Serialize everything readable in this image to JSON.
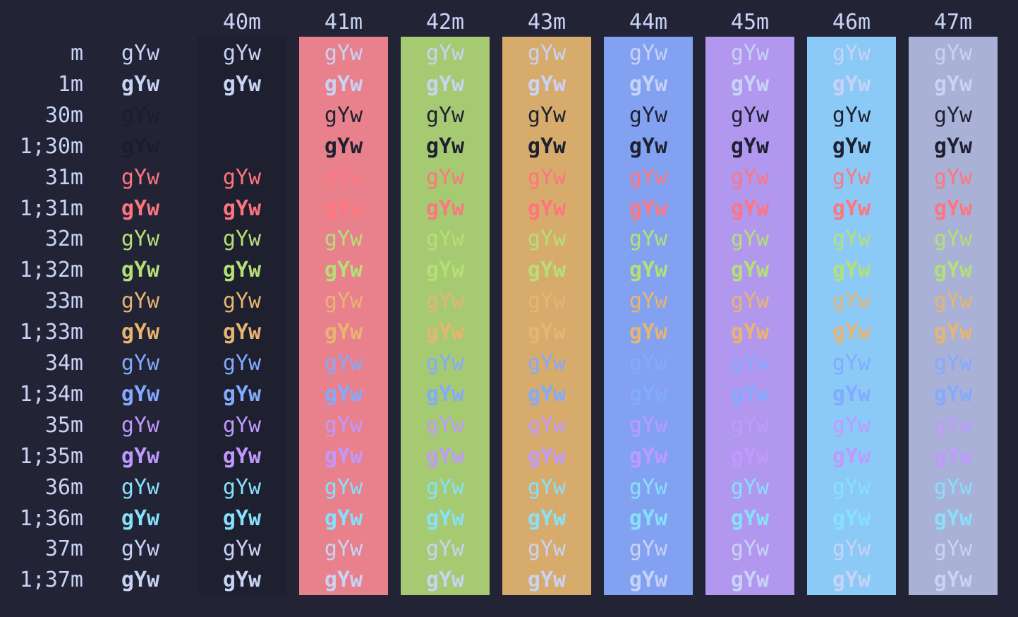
{
  "terminal": {
    "background": "#222436",
    "default_fg": "#c8d3f5",
    "sample_text": "gYw",
    "headers": [
      "40m",
      "41m",
      "42m",
      "43m",
      "44m",
      "45m",
      "46m",
      "47m"
    ],
    "bg_colors": [
      "#1e2030",
      "#e8818c",
      "#a6ca72",
      "#d7ab6c",
      "#82a2f1",
      "#b297ef",
      "#8bcaf7",
      "#a9b1d6"
    ],
    "rows": [
      {
        "label": "m",
        "fg": "#c8d3f5",
        "bold": false
      },
      {
        "label": "1m",
        "fg": "#c8d3f5",
        "bold": true
      },
      {
        "label": "30m",
        "fg": "#1e2030",
        "bold": false
      },
      {
        "label": "1;30m",
        "fg": "#1e2030",
        "bold": true
      },
      {
        "label": "31m",
        "fg": "#ff757f",
        "bold": false
      },
      {
        "label": "1;31m",
        "fg": "#ff757f",
        "bold": true
      },
      {
        "label": "32m",
        "fg": "#b4e075",
        "bold": false
      },
      {
        "label": "1;32m",
        "fg": "#b4e075",
        "bold": true
      },
      {
        "label": "33m",
        "fg": "#e7b56f",
        "bold": false
      },
      {
        "label": "1;33m",
        "fg": "#e7b56f",
        "bold": true
      },
      {
        "label": "34m",
        "fg": "#82aaff",
        "bold": false
      },
      {
        "label": "1;34m",
        "fg": "#82aaff",
        "bold": true
      },
      {
        "label": "35m",
        "fg": "#c099ff",
        "bold": false
      },
      {
        "label": "1;35m",
        "fg": "#c099ff",
        "bold": true
      },
      {
        "label": "36m",
        "fg": "#86e1fc",
        "bold": false
      },
      {
        "label": "1;36m",
        "fg": "#86e1fc",
        "bold": true
      },
      {
        "label": "37m",
        "fg": "#c8d3f5",
        "bold": false
      },
      {
        "label": "1;37m",
        "fg": "#c8d3f5",
        "bold": true
      }
    ],
    "overrides": {
      "30m": "#1b1d2b",
      "dark_text_on_bg": "#1e2030"
    }
  }
}
